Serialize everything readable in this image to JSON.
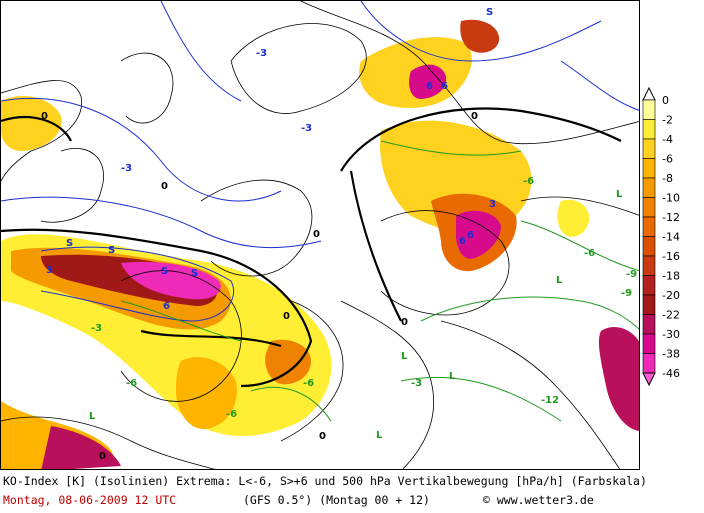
{
  "map": {
    "level_label_low": "S",
    "level_label_stable": "L",
    "contour_labels_blue": [
      "-3",
      "-3",
      "-3",
      "3",
      "6",
      "6",
      "6",
      "3",
      "6",
      "6"
    ],
    "contour_labels_black": [
      "0",
      "0",
      "0",
      "0",
      "0",
      "0",
      "0",
      "0"
    ],
    "contour_labels_green": [
      "-3",
      "-6",
      "-6",
      "-6",
      "-9",
      "-6",
      "-3",
      "-6",
      "-12",
      "-9"
    ],
    "colors": {
      "blue_isolines": "#1a2fd0",
      "black_isolines": "#000000",
      "green_isolines": "#1f9a1f",
      "frame": "#000000"
    }
  },
  "scale": {
    "labels": [
      "0",
      "-2",
      "-4",
      "-6",
      "-8",
      "-10",
      "-12",
      "-14",
      "-16",
      "-18",
      "-20",
      "-22",
      "-30",
      "-38",
      "-46"
    ],
    "colors": [
      "#ffff99",
      "#ffee33",
      "#ffd21f",
      "#ffb400",
      "#f59a00",
      "#ef8200",
      "#e86a00",
      "#d95000",
      "#c83a10",
      "#b22020",
      "#a01818",
      "#b8105a",
      "#d80a8c",
      "#ee2ab8",
      "#ff5cd8"
    ]
  },
  "caption": {
    "line1": "KO-Index [K] (Isolinien) Extrema: L<-6, S>+6 und 500 hPa Vertikalbewegung [hPa/h] (Farbskala)",
    "date": "Montag, 08-06-2009  12 UTC",
    "model": "(GFS 0.5°)  (Montag 00 + 12)",
    "credit": "© www.wetter3.de"
  }
}
